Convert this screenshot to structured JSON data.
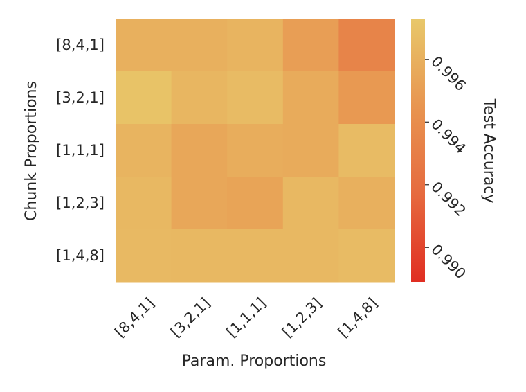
{
  "chart_data": {
    "type": "heatmap",
    "title": "",
    "xlabel": "Param. Proportions",
    "ylabel": "Chunk Proportions",
    "x_categories": [
      "[8,4,1]",
      "[3,2,1]",
      "[1,1,1]",
      "[1,2,3]",
      "[1,4,8]"
    ],
    "y_categories": [
      "[8,4,1]",
      "[3,2,1]",
      "[1,1,1]",
      "[1,2,3]",
      "[1,4,8]"
    ],
    "values": [
      [
        0.996,
        0.996,
        0.9962,
        0.995,
        0.9934
      ],
      [
        0.997,
        0.9963,
        0.9966,
        0.9957,
        0.9947
      ],
      [
        0.9962,
        0.9955,
        0.9958,
        0.9957,
        0.9966
      ],
      [
        0.9964,
        0.9955,
        0.9953,
        0.9964,
        0.996
      ],
      [
        0.9965,
        0.9964,
        0.9964,
        0.9964,
        0.9966
      ]
    ],
    "colorbar": {
      "label": "Test Accuracy",
      "range": [
        0.9889,
        0.9973
      ],
      "ticks": [
        0.99,
        0.992,
        0.994,
        0.996
      ],
      "tick_labels": [
        "0.990",
        "0.992",
        "0.994",
        "0.996"
      ],
      "colormap_stops": [
        "#e02e22",
        "#e66a3f",
        "#e89550",
        "#e8c86a"
      ]
    },
    "grid": false
  }
}
